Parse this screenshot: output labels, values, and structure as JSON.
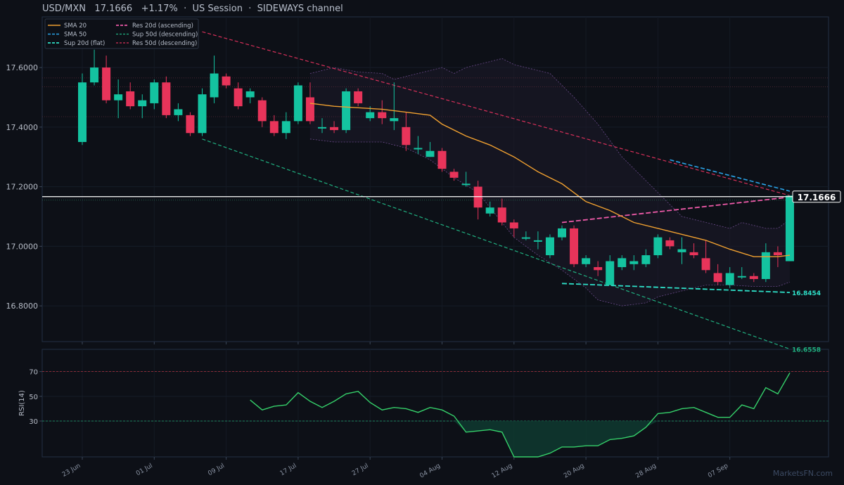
{
  "header": {
    "symbol": "USD/MXN",
    "price": "17.1666",
    "change": "+1.17%",
    "session": "US Session",
    "regime": "SIDEWAYS channel",
    "sep": "·"
  },
  "watermark": "MarketsFN.com",
  "colors": {
    "background": "#0d1017",
    "up": "#14c3a0",
    "down": "#e8345a",
    "sma20": "#f0a030",
    "sma50": "#2aa4e8",
    "sup20": "#2ee0c8",
    "sup50": "#20b080",
    "res20": "#ee5aa8",
    "res50": "#d8305a",
    "rsi": "#35d06a",
    "price_line": "#ffffff"
  },
  "chart_data": [
    {
      "type": "candlestick",
      "title": "USD/MXN 17.1666 +1.17% · US Session · SIDEWAYS channel",
      "ylim": [
        16.68,
        17.77
      ],
      "yticks": [
        "17.6000",
        "17.4000",
        "17.2000",
        "17.0000",
        "16.8000"
      ],
      "x_tick_labels": [
        "23 Jun",
        "01 Jul",
        "09 Jul",
        "17 Jul",
        "27 Jul",
        "04 Aug",
        "12 Aug",
        "20 Aug",
        "28 Aug",
        "07 Sep"
      ],
      "x_tick_index": [
        0,
        6,
        12,
        18,
        24,
        30,
        36,
        42,
        48,
        54
      ],
      "last_price_label": "17.1666",
      "line_labels": [
        "16.8454",
        "16.6558"
      ],
      "legend": [
        "SMA 20",
        "SMA 50",
        "Sup 20d (flat)",
        "Res 20d (ascending)",
        "Sup 50d (descending)",
        "Res 50d (descending)"
      ],
      "legend_position": "top-left",
      "candles": [
        [
          17.35,
          17.55,
          17.34,
          17.58
        ],
        [
          17.55,
          17.6,
          17.54,
          17.66
        ],
        [
          17.6,
          17.49,
          17.48,
          17.64
        ],
        [
          17.49,
          17.51,
          17.43,
          17.56
        ],
        [
          17.52,
          17.47,
          17.46,
          17.55
        ],
        [
          17.47,
          17.49,
          17.43,
          17.51
        ],
        [
          17.48,
          17.55,
          17.46,
          17.56
        ],
        [
          17.55,
          17.44,
          17.43,
          17.57
        ],
        [
          17.44,
          17.46,
          17.42,
          17.48
        ],
        [
          17.44,
          17.38,
          17.37,
          17.45
        ],
        [
          17.38,
          17.51,
          17.37,
          17.53
        ],
        [
          17.5,
          17.58,
          17.48,
          17.64
        ],
        [
          17.57,
          17.54,
          17.53,
          17.58
        ],
        [
          17.53,
          17.47,
          17.46,
          17.55
        ],
        [
          17.5,
          17.52,
          17.48,
          17.53
        ],
        [
          17.49,
          17.42,
          17.4,
          17.5
        ],
        [
          17.42,
          17.38,
          17.37,
          17.44
        ],
        [
          17.38,
          17.42,
          17.36,
          17.45
        ],
        [
          17.42,
          17.54,
          17.41,
          17.55
        ],
        [
          17.5,
          17.42,
          17.41,
          17.55
        ],
        [
          17.4,
          17.4,
          17.38,
          17.43
        ],
        [
          17.4,
          17.39,
          17.38,
          17.42
        ],
        [
          17.39,
          17.52,
          17.38,
          17.53
        ],
        [
          17.52,
          17.48,
          17.47,
          17.53
        ],
        [
          17.43,
          17.45,
          17.42,
          17.47
        ],
        [
          17.45,
          17.43,
          17.41,
          17.49
        ],
        [
          17.42,
          17.43,
          17.39,
          17.55
        ],
        [
          17.4,
          17.34,
          17.32,
          17.45
        ],
        [
          17.33,
          17.33,
          17.31,
          17.37
        ],
        [
          17.3,
          17.32,
          17.3,
          17.35
        ],
        [
          17.32,
          17.26,
          17.25,
          17.33
        ],
        [
          17.25,
          17.23,
          17.22,
          17.26
        ],
        [
          17.21,
          17.21,
          17.2,
          17.25
        ],
        [
          17.2,
          17.13,
          17.09,
          17.22
        ],
        [
          17.11,
          17.13,
          17.1,
          17.15
        ],
        [
          17.13,
          17.08,
          17.07,
          17.16
        ],
        [
          17.08,
          17.06,
          17.03,
          17.09
        ],
        [
          17.03,
          17.03,
          17.02,
          17.05
        ],
        [
          17.02,
          17.02,
          16.99,
          17.05
        ],
        [
          16.97,
          17.03,
          16.96,
          17.04
        ],
        [
          17.03,
          17.06,
          17.02,
          17.07
        ],
        [
          17.06,
          16.94,
          16.93,
          17.07
        ],
        [
          16.94,
          16.96,
          16.93,
          16.97
        ],
        [
          16.93,
          16.92,
          16.9,
          16.95
        ],
        [
          16.87,
          16.95,
          16.87,
          16.97
        ],
        [
          16.93,
          16.96,
          16.92,
          16.97
        ],
        [
          16.94,
          16.95,
          16.92,
          16.97
        ],
        [
          16.94,
          16.97,
          16.93,
          16.99
        ],
        [
          16.97,
          17.03,
          16.96,
          17.04
        ],
        [
          17.02,
          17.0,
          16.99,
          17.03
        ],
        [
          16.98,
          16.99,
          16.94,
          17.03
        ],
        [
          16.98,
          16.97,
          16.96,
          17.01
        ],
        [
          16.96,
          16.92,
          16.91,
          17.02
        ],
        [
          16.91,
          16.88,
          16.87,
          16.94
        ],
        [
          16.87,
          16.91,
          16.86,
          16.93
        ],
        [
          16.9,
          16.9,
          16.89,
          16.93
        ],
        [
          16.9,
          16.89,
          16.88,
          16.91
        ],
        [
          16.89,
          16.98,
          16.88,
          17.01
        ],
        [
          16.98,
          16.97,
          16.93,
          17.0
        ],
        [
          16.95,
          17.17,
          16.95,
          17.17
        ]
      ],
      "sma20": [
        [
          19,
          17.48
        ],
        [
          21,
          17.47
        ],
        [
          23,
          17.465
        ],
        [
          25,
          17.46
        ],
        [
          27,
          17.45
        ],
        [
          29,
          17.44
        ],
        [
          30,
          17.41
        ],
        [
          32,
          17.37
        ],
        [
          34,
          17.34
        ],
        [
          36,
          17.3
        ],
        [
          38,
          17.25
        ],
        [
          40,
          17.21
        ],
        [
          42,
          17.15
        ],
        [
          44,
          17.12
        ],
        [
          46,
          17.08
        ],
        [
          48,
          17.06
        ],
        [
          50,
          17.04
        ],
        [
          52,
          17.02
        ],
        [
          54,
          16.99
        ],
        [
          56,
          16.965
        ],
        [
          58,
          16.965
        ],
        [
          59,
          16.97
        ]
      ],
      "sma50": [
        [
          49,
          17.29
        ],
        [
          59,
          17.185
        ]
      ],
      "sup20": [
        [
          40,
          16.875
        ],
        [
          59,
          16.845
        ]
      ],
      "res20": [
        [
          40,
          17.08
        ],
        [
          59,
          17.165
        ]
      ],
      "sup50": [
        [
          10,
          17.36
        ],
        [
          59,
          16.655
        ]
      ],
      "res50": [
        [
          10,
          17.72
        ],
        [
          59,
          17.17
        ]
      ],
      "horizontal_levels": [
        17.565,
        17.535,
        17.435,
        17.155
      ],
      "bb_upper": [
        [
          19,
          17.58
        ],
        [
          21,
          17.6
        ],
        [
          23,
          17.585
        ],
        [
          25,
          17.58
        ],
        [
          26,
          17.56
        ],
        [
          28,
          17.58
        ],
        [
          30,
          17.6
        ],
        [
          31,
          17.58
        ],
        [
          32,
          17.6
        ],
        [
          34,
          17.62
        ],
        [
          35,
          17.63
        ],
        [
          36,
          17.61
        ],
        [
          38,
          17.59
        ],
        [
          39,
          17.58
        ],
        [
          41,
          17.5
        ],
        [
          43,
          17.41
        ],
        [
          45,
          17.3
        ],
        [
          47,
          17.22
        ],
        [
          49,
          17.14
        ],
        [
          50,
          17.1
        ],
        [
          52,
          17.08
        ],
        [
          54,
          17.06
        ],
        [
          55,
          17.08
        ],
        [
          57,
          17.06
        ],
        [
          58,
          17.06
        ],
        [
          59,
          17.09
        ]
      ],
      "bb_lower": [
        [
          19,
          17.36
        ],
        [
          21,
          17.35
        ],
        [
          23,
          17.35
        ],
        [
          25,
          17.35
        ],
        [
          27,
          17.33
        ],
        [
          29,
          17.29
        ],
        [
          31,
          17.23
        ],
        [
          33,
          17.18
        ],
        [
          35,
          17.08
        ],
        [
          36,
          17.03
        ],
        [
          38,
          16.97
        ],
        [
          40,
          16.92
        ],
        [
          42,
          16.86
        ],
        [
          43,
          16.82
        ],
        [
          45,
          16.8
        ],
        [
          47,
          16.81
        ],
        [
          48,
          16.83
        ],
        [
          50,
          16.85
        ],
        [
          52,
          16.87
        ],
        [
          54,
          16.87
        ],
        [
          56,
          16.865
        ],
        [
          58,
          16.865
        ],
        [
          59,
          16.88
        ]
      ]
    },
    {
      "type": "line",
      "ylabel": "RSI(14)",
      "ylim": [
        1,
        88
      ],
      "yticks": [
        "70",
        "50",
        "30"
      ],
      "overbought": 70,
      "oversold": 30,
      "points": [
        [
          14,
          47
        ],
        [
          15,
          39
        ],
        [
          16,
          42
        ],
        [
          17,
          43
        ],
        [
          18,
          53
        ],
        [
          19,
          46
        ],
        [
          20,
          41
        ],
        [
          21,
          46
        ],
        [
          22,
          52
        ],
        [
          23,
          54
        ],
        [
          24,
          45
        ],
        [
          25,
          39
        ],
        [
          26,
          41
        ],
        [
          27,
          40
        ],
        [
          28,
          37
        ],
        [
          29,
          41
        ],
        [
          30,
          39
        ],
        [
          31,
          34
        ],
        [
          32,
          21
        ],
        [
          33,
          22
        ],
        [
          34,
          23
        ],
        [
          35,
          21
        ],
        [
          36,
          1
        ],
        [
          37,
          1
        ],
        [
          38,
          1
        ],
        [
          39,
          4
        ],
        [
          40,
          9
        ],
        [
          41,
          9
        ],
        [
          42,
          10
        ],
        [
          43,
          10
        ],
        [
          44,
          15
        ],
        [
          45,
          16
        ],
        [
          46,
          18
        ],
        [
          47,
          25
        ],
        [
          48,
          36
        ],
        [
          49,
          37
        ],
        [
          50,
          40
        ],
        [
          51,
          41
        ],
        [
          52,
          37
        ],
        [
          53,
          33
        ],
        [
          54,
          33
        ],
        [
          55,
          43
        ],
        [
          56,
          40
        ],
        [
          57,
          57
        ],
        [
          58,
          52
        ],
        [
          59,
          69
        ]
      ]
    }
  ]
}
